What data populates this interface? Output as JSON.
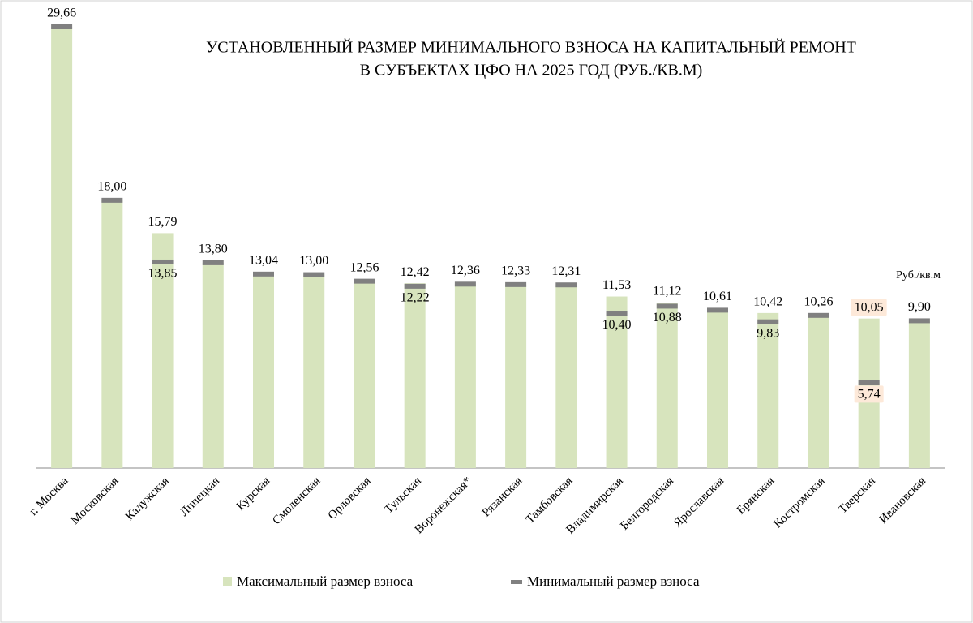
{
  "chart_data": {
    "type": "bar",
    "title": [
      "УСТАНОВЛЕННЫЙ РАЗМЕР МИНИМАЛЬНОГО ВЗНОСА  НА КАПИТАЛЬНЫЙ РЕМОНТ",
      "В СУБЪЕКТАХ  ЦФО  НА 2025 ГОД (РУБ./КВ.М)"
    ],
    "unit_label": "Руб./кв.м",
    "categories": [
      "г. Москва",
      "Московская",
      "Калужская",
      "Липецкая",
      "Курская",
      "Смоленская",
      "Орловская",
      "Тульская",
      "Воронежская*",
      "Рязанская",
      "Тамбовская",
      "Владимирская",
      "Белгородская",
      "Ярославская",
      "Брянская",
      "Костромская",
      "Тверская",
      "Ивановская"
    ],
    "series": [
      {
        "name": "Максимальный размер взноса",
        "color": "#d7e4bd",
        "values": [
          29.66,
          18.0,
          15.79,
          13.8,
          13.04,
          13.0,
          12.56,
          12.42,
          12.36,
          12.33,
          12.31,
          11.53,
          11.12,
          10.61,
          10.42,
          10.26,
          10.05,
          9.9
        ],
        "value_labels": [
          "29,66",
          "18,00",
          "15,79",
          "13,80",
          "13,04",
          "13,00",
          "12,56",
          "12,42",
          "12,36",
          "12,33",
          "12,31",
          "11,53",
          "11,12",
          "10,61",
          "10,42",
          "10,26",
          "10,05",
          "9,90"
        ]
      },
      {
        "name": "Минимальный размер взноса",
        "color": "#808080",
        "values": [
          29.66,
          18.0,
          13.85,
          13.8,
          13.04,
          13.0,
          12.56,
          12.22,
          12.36,
          12.33,
          12.31,
          10.4,
          10.88,
          10.61,
          9.83,
          10.26,
          5.74,
          9.9
        ],
        "value_labels": [
          null,
          null,
          "13,85",
          null,
          null,
          null,
          null,
          "12,22",
          null,
          null,
          null,
          "10,40",
          "10,88",
          null,
          "9,83",
          null,
          "5,74",
          null
        ]
      }
    ],
    "label_highlight": {
      "category": "Тверская",
      "color": "#fde9d9"
    }
  }
}
